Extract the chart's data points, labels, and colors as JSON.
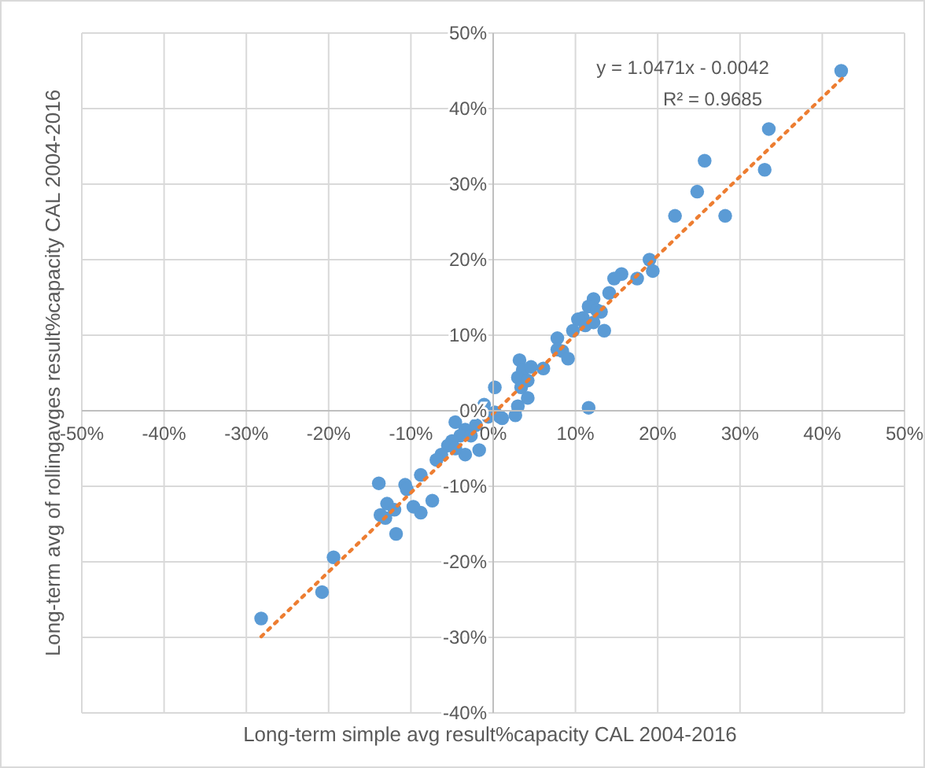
{
  "chart_data": {
    "type": "scatter",
    "xlabel": "Long-term simple avg result%capacity CAL 2004-2016",
    "ylabel": "Long-term avg of rollingavges result%capacity CAL 2004-2016",
    "annotations": [
      "y = 1.0471x - 0.0042",
      "R² = 0.9685"
    ],
    "xlim": [
      -50,
      50
    ],
    "ylim": [
      -40,
      50
    ],
    "xticks": [
      {
        "value": -50,
        "label": "-50%"
      },
      {
        "value": -40,
        "label": "-40%"
      },
      {
        "value": -30,
        "label": "-30%"
      },
      {
        "value": -20,
        "label": "-20%"
      },
      {
        "value": -10,
        "label": "-10%"
      },
      {
        "value": 0,
        "label": "0%"
      },
      {
        "value": 10,
        "label": "10%"
      },
      {
        "value": 20,
        "label": "20%"
      },
      {
        "value": 30,
        "label": "30%"
      },
      {
        "value": 40,
        "label": "40%"
      },
      {
        "value": 50,
        "label": "50%"
      }
    ],
    "yticks": [
      {
        "value": -40,
        "label": "-40%"
      },
      {
        "value": -30,
        "label": "-30%"
      },
      {
        "value": -20,
        "label": "-20%"
      },
      {
        "value": -10,
        "label": "-10%"
      },
      {
        "value": 0,
        "label": "0%"
      },
      {
        "value": 10,
        "label": "10%"
      },
      {
        "value": 20,
        "label": "20%"
      },
      {
        "value": 30,
        "label": "30%"
      },
      {
        "value": 40,
        "label": "40%"
      },
      {
        "value": 50,
        "label": "50%"
      }
    ],
    "grid": true,
    "marker": "circle",
    "series": [
      {
        "color": "#5b9bd5",
        "x": [
          42.3,
          33.5,
          33.0,
          25.7,
          24.8,
          22.1,
          28.2,
          19.0,
          19.4,
          15.6,
          14.7,
          17.5,
          14.1,
          12.2,
          11.6,
          12.6,
          13.1,
          10.9,
          10.3,
          12.2,
          11.2,
          9.7,
          13.5,
          7.8,
          7.8,
          8.4,
          9.1,
          6.1,
          3.2,
          3.6,
          4.6,
          3.0,
          4.2,
          3.4,
          4.2,
          0.2,
          3.0,
          2.7,
          11.6,
          -1.1,
          -4.6,
          0.2,
          0.8,
          -0.6,
          -2.1,
          -3.4,
          -4.0,
          1.1,
          -2.7,
          -1.7,
          -3.4,
          -5.0,
          -5.5,
          -4.6,
          -6.3,
          -6.9,
          -8.8,
          -7.4,
          -8.8,
          -9.7,
          -10.7,
          -10.5,
          -13.9,
          -12.9,
          -12.0,
          -13.7,
          -13.1,
          -11.8,
          -19.4,
          -20.8,
          -28.2
        ],
        "values": [
          45.0,
          37.3,
          31.9,
          33.1,
          29.0,
          25.8,
          25.8,
          20.0,
          18.5,
          18.1,
          17.5,
          17.5,
          15.6,
          14.8,
          13.8,
          13.3,
          13.1,
          12.3,
          12.1,
          11.7,
          11.3,
          10.6,
          10.6,
          9.6,
          8.1,
          7.9,
          6.9,
          5.6,
          6.7,
          5.4,
          5.8,
          4.4,
          4.0,
          3.1,
          1.7,
          3.1,
          0.6,
          -0.6,
          0.4,
          0.8,
          -1.5,
          -0.2,
          -0.8,
          -0.8,
          -1.9,
          -2.5,
          -3.3,
          -1.0,
          -3.3,
          -5.2,
          -5.8,
          -4.0,
          -4.6,
          -5.0,
          -5.8,
          -6.5,
          -8.5,
          -11.9,
          -13.5,
          -12.7,
          -9.8,
          -10.4,
          -9.6,
          -12.3,
          -13.1,
          -13.8,
          -14.2,
          -16.3,
          -19.4,
          -24.0,
          -27.5
        ]
      },
      {
        "type": "line",
        "color": "#ed7d31",
        "line_style": "dotted",
        "marker": "none",
        "x": [
          -28.2,
          42.8
        ],
        "values": [
          -29.9,
          44.4
        ]
      }
    ]
  }
}
